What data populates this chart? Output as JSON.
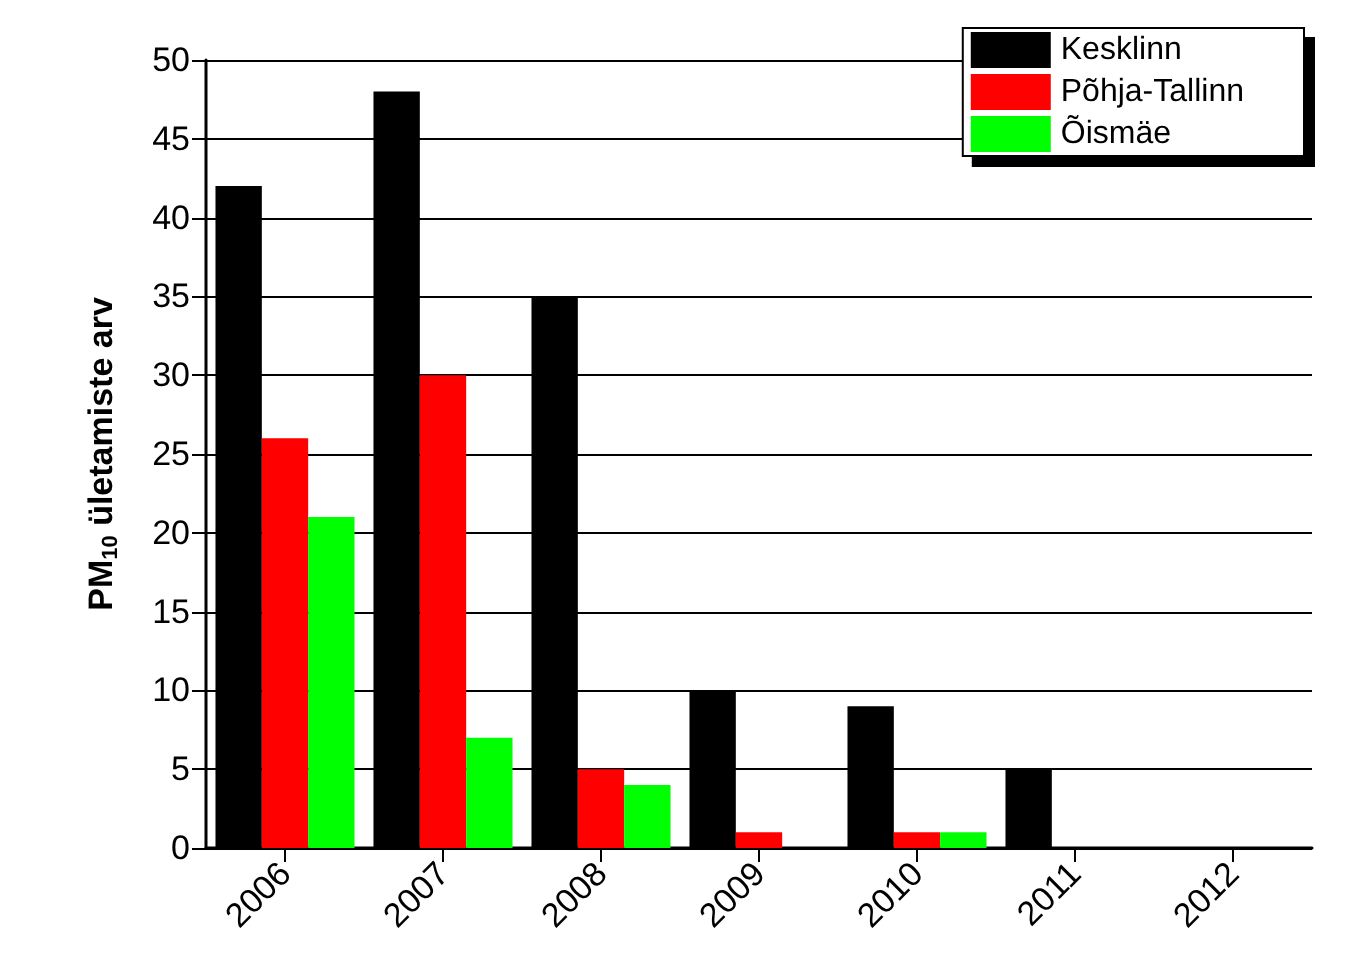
{
  "chart_data": {
    "type": "bar",
    "ylabel": "PM$_{10}$ ületamiste arv",
    "categories": [
      "2006",
      "2007",
      "2008",
      "2009",
      "2010",
      "2011",
      "2012"
    ],
    "series": [
      {
        "name": "Kesklinn",
        "color": "#000000",
        "values": [
          42,
          48,
          35,
          10,
          9,
          5,
          0
        ]
      },
      {
        "name": "Põhja-Tallinn",
        "color": "#ff0000",
        "values": [
          26,
          30,
          5,
          1,
          1,
          0,
          0
        ]
      },
      {
        "name": "Õismäe",
        "color": "#00ff00",
        "values": [
          21,
          7,
          4,
          0,
          1,
          0,
          0
        ]
      }
    ],
    "ylim": [
      0,
      50
    ],
    "yticks": [
      0,
      5,
      10,
      15,
      20,
      25,
      30,
      35,
      40,
      45,
      50
    ],
    "grid": "y",
    "legend": "top right"
  }
}
